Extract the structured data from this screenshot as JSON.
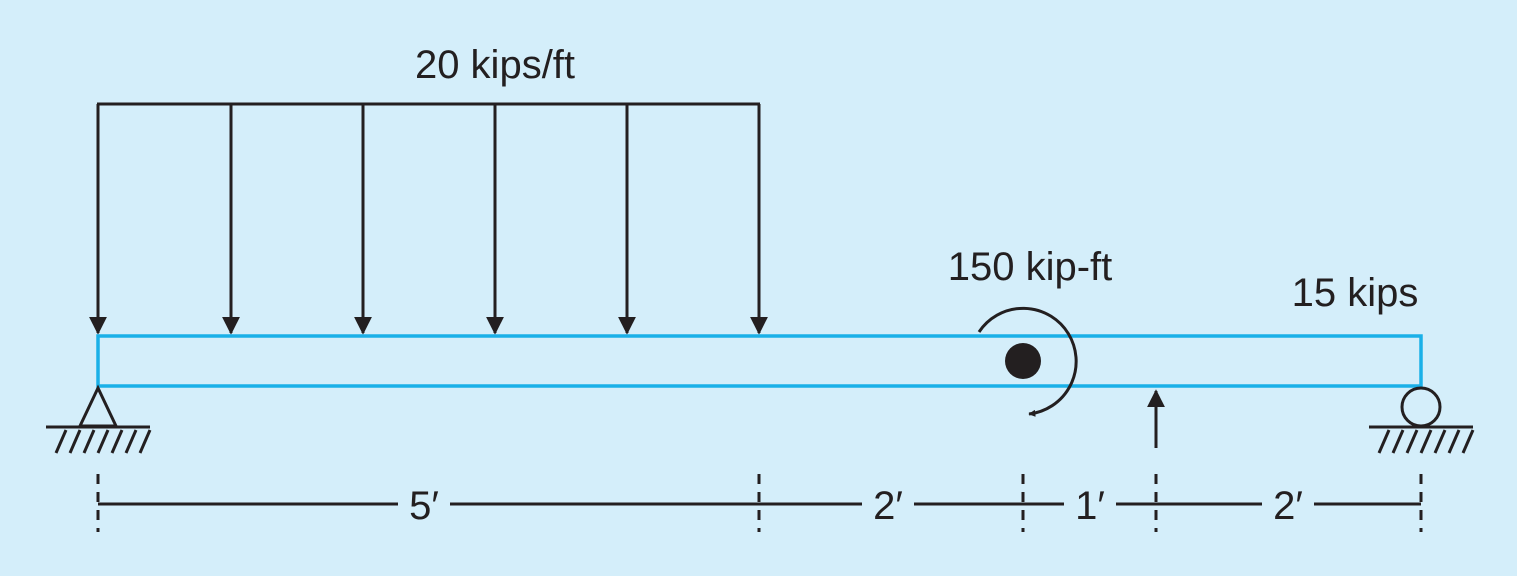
{
  "loads": {
    "distributed_label": "20 kips/ft",
    "moment_label": "150 kip-ft",
    "point_label": "15 kips"
  },
  "dimensions": [
    "5′",
    "2′",
    "1′",
    "2′"
  ],
  "colors": {
    "background": "#d4eefa",
    "beam": "#1ab0e8",
    "ink": "#231f20"
  }
}
